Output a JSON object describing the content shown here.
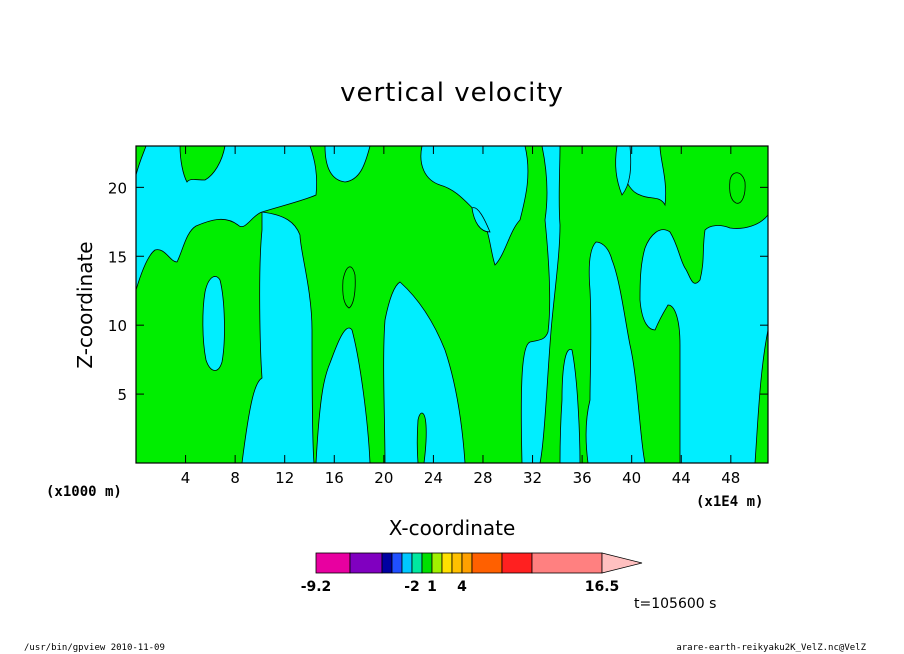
{
  "chart_data": {
    "type": "heatmap",
    "title": "vertical velocity",
    "xlabel": "X-coordinate",
    "ylabel": "Z-coordinate",
    "x_unit_left": "(x1000 m)",
    "x_unit_right": "(x1E4 m)",
    "xlim": [
      0,
      51
    ],
    "ylim": [
      0,
      23
    ],
    "xticks": [
      "4",
      "8",
      "12",
      "16",
      "20",
      "24",
      "28",
      "32",
      "36",
      "40",
      "44",
      "48"
    ],
    "yticks": [
      "5",
      "10",
      "15",
      "20"
    ],
    "xtick_values": [
      4,
      8,
      12,
      16,
      20,
      24,
      28,
      32,
      36,
      40,
      44,
      48
    ],
    "ytick_values": [
      5,
      10,
      15,
      20
    ],
    "grid": false,
    "colors_shown": {
      "positive": "#00ee00",
      "negative": "#00eeff"
    },
    "colorbar": {
      "colors": [
        "#e800a0",
        "#8000c0",
        "#0000a0",
        "#2050ff",
        "#00c8ff",
        "#00e8a0",
        "#00e000",
        "#a0f000",
        "#ffe000",
        "#ffc000",
        "#ffa000",
        "#ff6000",
        "#ff2020",
        "#ff8080",
        "#ffc0c0"
      ],
      "labels": [
        "-9.2",
        "-2",
        "1",
        "4",
        "16.5"
      ]
    },
    "time_label": "t=105600 s"
  },
  "footer": {
    "left": "/usr/bin/gpview   2010-11-09",
    "right": "arare-earth-reikyaku2K_VelZ.nc@VelZ"
  }
}
